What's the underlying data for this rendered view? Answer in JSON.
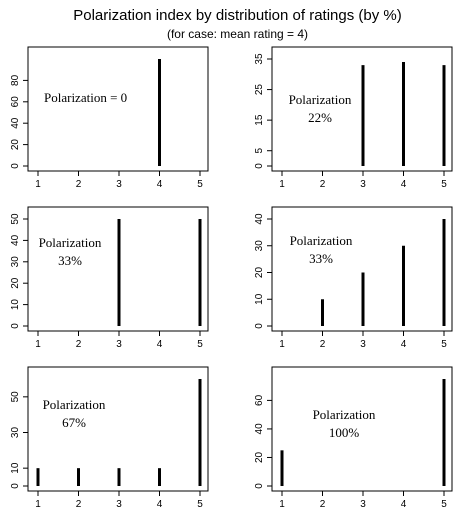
{
  "title": "Polarization index by distribution of ratings (by %)",
  "subtitle": "(for case: mean rating = 4)",
  "colors": {
    "bar": "#000000",
    "axis": "#000000",
    "highlight_tick": "#3355cc"
  },
  "chart_data": [
    {
      "type": "bar",
      "categories": [
        1,
        2,
        3,
        4,
        5
      ],
      "values": [
        0,
        0,
        0,
        100,
        0
      ],
      "xlim": [
        1,
        5
      ],
      "ylim": [
        0,
        100
      ],
      "yticks": [
        0,
        20,
        40,
        60,
        80
      ],
      "xticks": [
        1,
        2,
        3,
        4,
        5
      ],
      "annotation": [
        "Polarization = 0"
      ],
      "annotation_align": "left"
    },
    {
      "type": "bar",
      "categories": [
        1,
        2,
        3,
        4,
        5
      ],
      "values": [
        0,
        0,
        33,
        34,
        33
      ],
      "xlim": [
        1,
        5
      ],
      "ylim": [
        0,
        35
      ],
      "yticks": [
        0,
        5,
        15,
        25,
        35
      ],
      "xticks": [
        1,
        2,
        3,
        4,
        5
      ],
      "annotation": [
        "Polarization",
        "22%"
      ],
      "annotation_align": "center"
    },
    {
      "type": "bar",
      "categories": [
        1,
        2,
        3,
        4,
        5
      ],
      "values": [
        0,
        0,
        50,
        0,
        50
      ],
      "xlim": [
        1,
        5
      ],
      "ylim": [
        0,
        50
      ],
      "yticks": [
        0,
        10,
        20,
        30,
        40,
        50
      ],
      "xticks": [
        1,
        2,
        3,
        4,
        5
      ],
      "annotation": [
        "Polarization",
        "33%"
      ],
      "annotation_align": "center"
    },
    {
      "type": "bar",
      "categories": [
        1,
        2,
        3,
        4,
        5
      ],
      "values": [
        0,
        10,
        20,
        30,
        40
      ],
      "xlim": [
        1,
        5
      ],
      "ylim": [
        0,
        40
      ],
      "yticks": [
        0,
        10,
        20,
        30,
        40
      ],
      "xticks": [
        1,
        2,
        3,
        4,
        5
      ],
      "annotation": [
        "Polarization",
        "33%"
      ],
      "annotation_align": "center"
    },
    {
      "type": "bar",
      "categories": [
        1,
        2,
        3,
        4,
        5
      ],
      "values": [
        10,
        10,
        10,
        10,
        60
      ],
      "xlim": [
        1,
        5
      ],
      "ylim": [
        0,
        60
      ],
      "yticks": [
        0,
        10,
        30,
        50
      ],
      "xticks": [
        1,
        2,
        3,
        4,
        5
      ],
      "annotation": [
        "Polarization",
        "67%"
      ],
      "annotation_align": "center"
    },
    {
      "type": "bar",
      "categories": [
        1,
        2,
        3,
        4,
        5
      ],
      "values": [
        25,
        0,
        0,
        0,
        75
      ],
      "xlim": [
        1,
        5
      ],
      "ylim": [
        0,
        75
      ],
      "yticks": [
        0,
        20,
        40,
        60
      ],
      "xticks": [
        1,
        2,
        3,
        4,
        5
      ],
      "highlight_xticks": [
        1,
        5
      ],
      "annotation": [
        "Polarization",
        "100%"
      ],
      "annotation_align": "center"
    }
  ]
}
